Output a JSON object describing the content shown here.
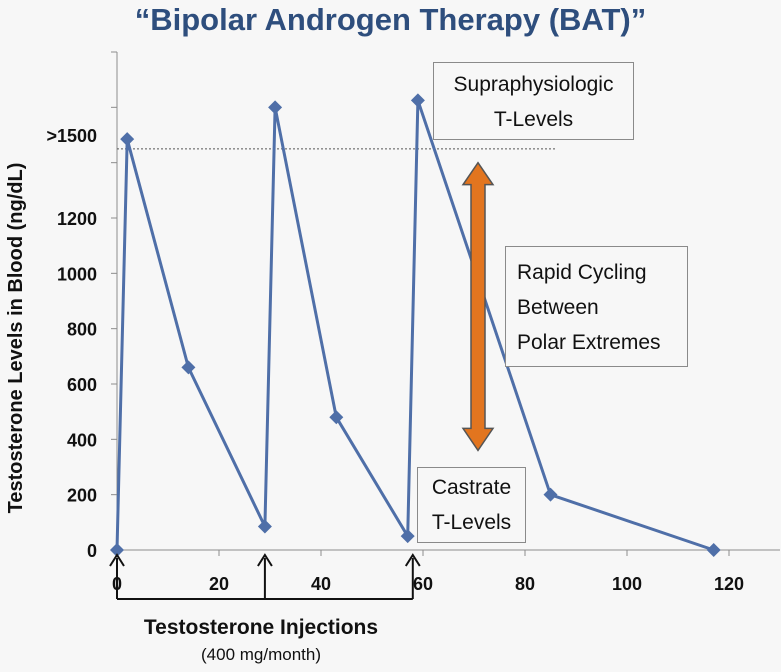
{
  "chart_data": {
    "type": "line",
    "title": "“Bipolar Androgen Therapy (BAT)”",
    "ylabel": "Testosterone Levels in Blood (ng/dL)",
    "xlabel": "",
    "xlim": [
      0,
      130
    ],
    "ylim": [
      0,
      1800
    ],
    "x_ticks": [
      0,
      20,
      40,
      60,
      80,
      100,
      120
    ],
    "x_tick_labels": [
      "0",
      "20",
      "40",
      "60",
      "80",
      "100",
      "120"
    ],
    "y_ticks": [
      0,
      200,
      400,
      600,
      800,
      1000,
      1200,
      1500
    ],
    "y_tick_labels": [
      "0",
      "200",
      "400",
      "600",
      "800",
      "1000",
      "1200",
      ">1500"
    ],
    "grid": false,
    "reference_line": {
      "y": 1450,
      "style": "dotted"
    },
    "series": [
      {
        "x": [
          0,
          2,
          14,
          29,
          31,
          43,
          57,
          59,
          85,
          117
        ],
        "y": [
          0,
          1485,
          660,
          85,
          1600,
          480,
          50,
          1625,
          200,
          0
        ],
        "color": "#4f6fa8"
      }
    ],
    "injection_arrows_x": [
      0,
      29,
      58
    ],
    "double_arrow": {
      "y_top": 1400,
      "y_bottom": 360,
      "color": "#e2751f"
    },
    "annotations": {
      "supraphysiologic": [
        "Supraphysiologic",
        "T-Levels"
      ],
      "cycling": [
        "Rapid Cycling",
        "Between",
        "Polar Extremes"
      ],
      "castrate": [
        "Castrate",
        "T-Levels"
      ],
      "injections": "Testosterone Injections",
      "injections_sub": "(400 mg/month)"
    }
  }
}
